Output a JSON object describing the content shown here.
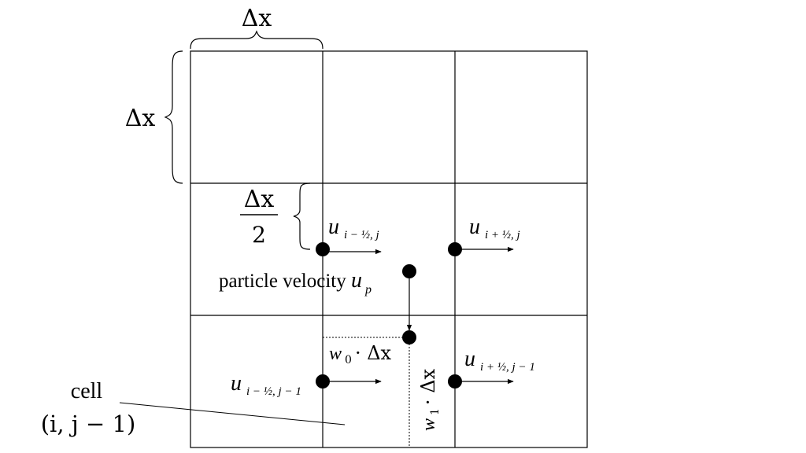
{
  "labels": {
    "delta_x_top": "Δx",
    "delta_x_left": "Δx",
    "half_numerator": "Δx",
    "half_denominator": "2",
    "u_left_mid": {
      "main": "u",
      "sub": "i − ½, j"
    },
    "u_right_mid": {
      "main": "u",
      "sub": "i + ½, j"
    },
    "u_left_bottom": {
      "main": "u",
      "sub": "i − ½, j − 1"
    },
    "u_right_bottom": {
      "main": "u",
      "sub": "i + ½, j − 1"
    },
    "particle_label": "particle velocity ",
    "particle_symbol": {
      "main": "u",
      "sub": "p"
    },
    "w0_label": {
      "w": "w",
      "sub": "0",
      "rest": " · Δx"
    },
    "w1_label": {
      "w": "w",
      "sub": "1",
      "rest": " · Δx"
    },
    "cell_word": "cell",
    "cell_index": "(i, j − 1)"
  },
  "colors": {
    "ink": "#000000",
    "background": "#ffffff"
  }
}
